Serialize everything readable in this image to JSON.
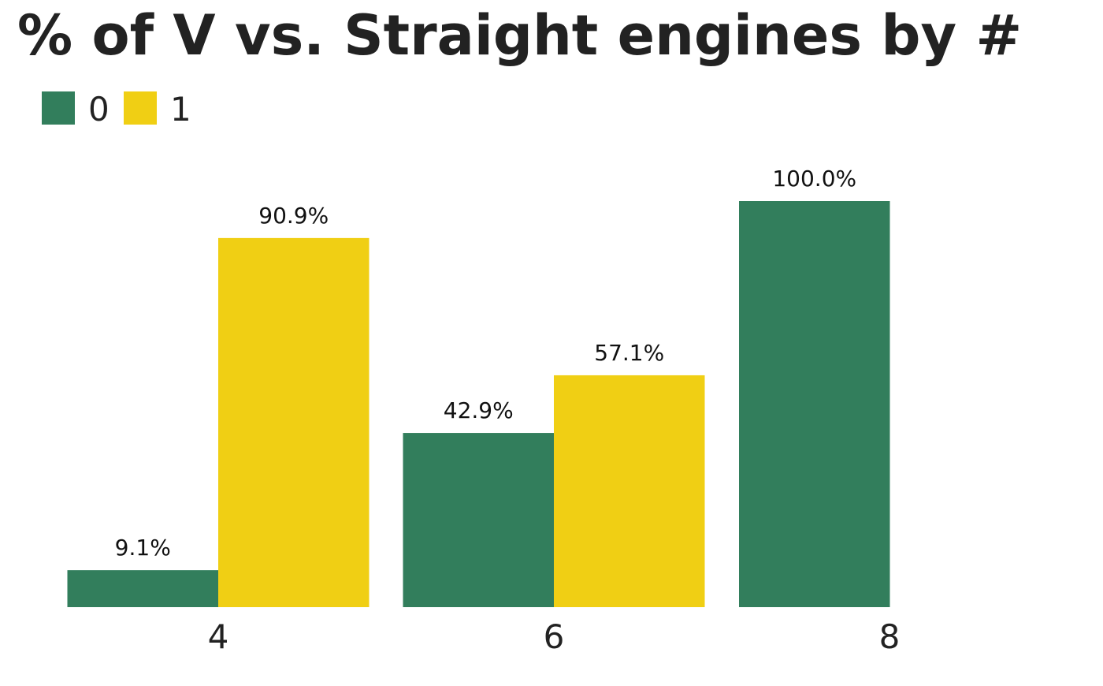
{
  "chart_data": {
    "type": "bar",
    "title": "% of V vs. Straight engines by #",
    "xlabel": "",
    "ylabel": "",
    "categories": [
      "4",
      "6",
      "8"
    ],
    "series": [
      {
        "name": "0",
        "color": "#327e5c",
        "values": [
          9.1,
          42.9,
          100.0
        ],
        "labels": [
          "9.1%",
          "42.9%",
          "100.0%"
        ]
      },
      {
        "name": "1",
        "color": "#f0cf14",
        "values": [
          90.9,
          57.1,
          0
        ],
        "labels": [
          "90.9%",
          "57.1%",
          ""
        ]
      }
    ],
    "ylim": [
      0,
      100
    ],
    "grid": false,
    "legend_position": "top-left"
  }
}
